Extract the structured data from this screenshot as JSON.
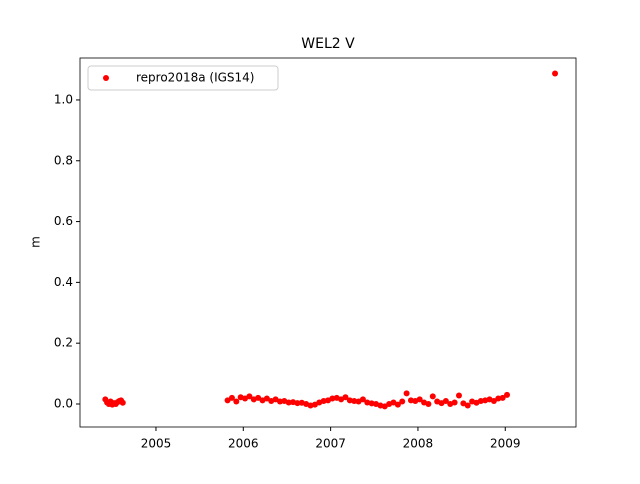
{
  "chart_data": {
    "type": "scatter",
    "title": "WEL2 V",
    "ylabel": "m",
    "x": [
      2004.42,
      2004.44,
      2004.46,
      2004.48,
      2004.5,
      2004.52,
      2004.54,
      2004.56,
      2004.58,
      2004.6,
      2004.62,
      2005.82,
      2005.87,
      2005.92,
      2005.97,
      2006.02,
      2006.07,
      2006.12,
      2006.17,
      2006.22,
      2006.27,
      2006.32,
      2006.37,
      2006.42,
      2006.47,
      2006.52,
      2006.57,
      2006.62,
      2006.67,
      2006.72,
      2006.77,
      2006.82,
      2006.87,
      2006.92,
      2006.97,
      2007.02,
      2007.07,
      2007.12,
      2007.17,
      2007.22,
      2007.27,
      2007.32,
      2007.37,
      2007.42,
      2007.47,
      2007.52,
      2007.57,
      2007.62,
      2007.67,
      2007.72,
      2007.77,
      2007.82,
      2007.87,
      2007.92,
      2007.97,
      2008.02,
      2008.07,
      2008.12,
      2008.17,
      2008.22,
      2008.27,
      2008.32,
      2008.37,
      2008.42,
      2008.47,
      2008.52,
      2008.57,
      2008.62,
      2008.67,
      2008.72,
      2008.77,
      2008.82,
      2008.87,
      2008.92,
      2008.97,
      2009.02,
      2009.57
    ],
    "series": [
      {
        "name": "repro2018a (IGS14)",
        "color": "#ff0000",
        "values": [
          0.015,
          0.005,
          0.0,
          0.008,
          -0.002,
          0.003,
          0.0,
          0.006,
          0.01,
          0.012,
          0.004,
          0.012,
          0.02,
          0.008,
          0.022,
          0.018,
          0.025,
          0.015,
          0.02,
          0.012,
          0.018,
          0.01,
          0.015,
          0.008,
          0.01,
          0.005,
          0.006,
          0.003,
          0.004,
          0.0,
          -0.005,
          -0.002,
          0.005,
          0.01,
          0.012,
          0.018,
          0.02,
          0.015,
          0.022,
          0.012,
          0.01,
          0.008,
          0.015,
          0.005,
          0.002,
          0.0,
          -0.005,
          -0.008,
          0.0,
          0.005,
          -0.002,
          0.008,
          0.035,
          0.012,
          0.01,
          0.015,
          0.005,
          0.0,
          0.025,
          0.008,
          0.003,
          0.01,
          0.0,
          0.005,
          0.028,
          0.002,
          -0.005,
          0.008,
          0.004,
          0.01,
          0.012,
          0.015,
          0.01,
          0.018,
          0.02,
          0.03,
          1.087
        ]
      }
    ],
    "xlim": [
      2004.13,
      2009.81
    ],
    "xticks": [
      2005,
      2006,
      2007,
      2008,
      2009
    ],
    "ylim": [
      -0.0757,
      1.138
    ],
    "yticks": [
      {
        "value": 0,
        "label": "0.0"
      },
      0.2,
      0.4,
      0.6,
      0.8,
      {
        "value": 1,
        "label": "1.0"
      }
    ],
    "legend": "upper left"
  }
}
